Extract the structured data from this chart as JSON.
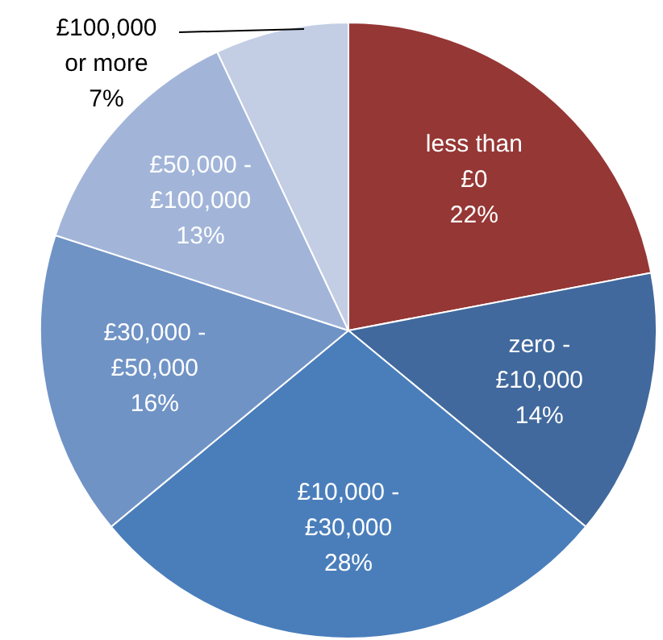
{
  "chart_data": {
    "type": "pie",
    "categories": [
      "less than £0",
      "zero - £10,000",
      "£10,000 - £30,000",
      "£30,000 - £50,000",
      "£50,000 - £100,000",
      "£100,000 or more"
    ],
    "values": [
      22,
      14,
      28,
      16,
      13,
      7
    ],
    "colors": [
      "#953735",
      "#41699d",
      "#4a7ebb",
      "#7093c6",
      "#a2b5d9",
      "#c3cde4"
    ],
    "value_labels": [
      "22%",
      "14%",
      "28%",
      "16%",
      "13%",
      "7%"
    ],
    "legend": false
  }
}
